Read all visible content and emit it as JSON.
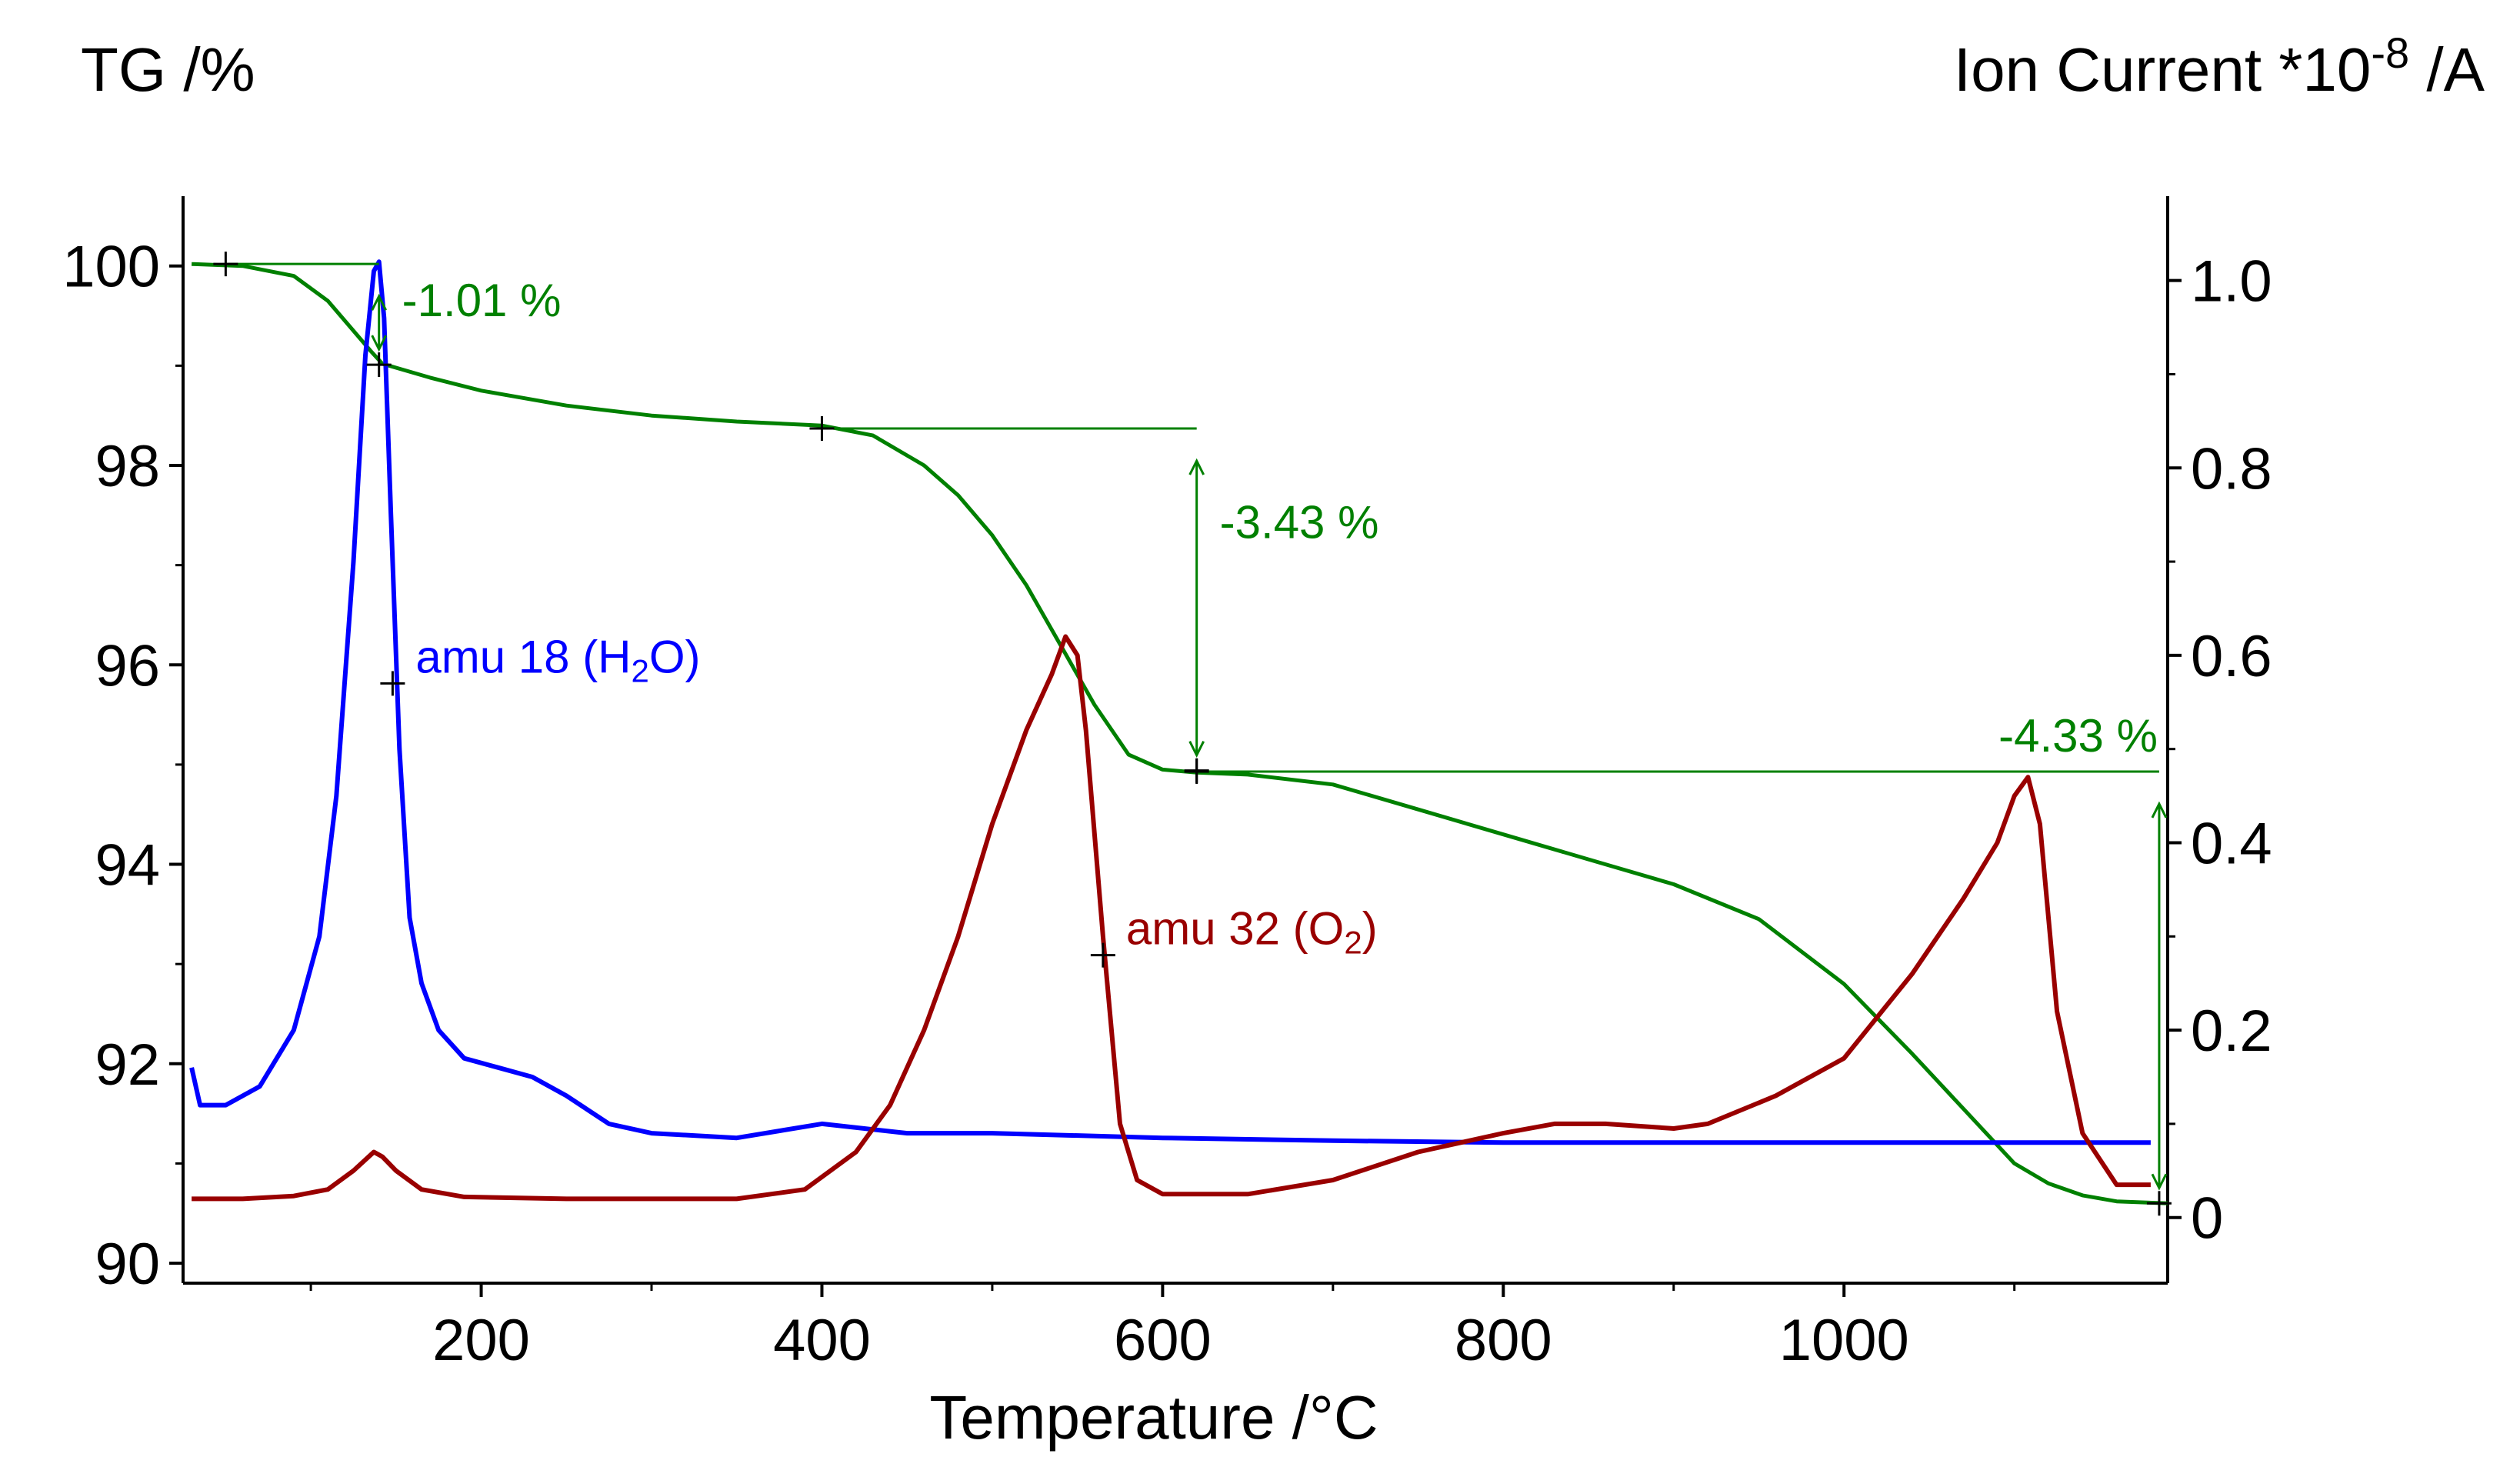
{
  "chart_data": {
    "type": "line",
    "ylabel_left": "TG /%",
    "ylabel_right_base": "Ion Current *10",
    "ylabel_right_exp": "-8",
    "ylabel_right_unit": " /A",
    "xlabel": "Temperature /°C",
    "xlim": [
      25,
      1190
    ],
    "ylim_left": [
      89.8,
      100.7
    ],
    "ylim_right": [
      -0.07,
      1.09
    ],
    "x_ticks": [
      200,
      400,
      600,
      800,
      1000
    ],
    "y_left_ticks": [
      90,
      92,
      94,
      96,
      98,
      100
    ],
    "y_right_ticks": [
      0,
      0.2,
      0.4,
      0.6,
      0.8,
      1.0
    ],
    "y_right_tick_labels": [
      "0",
      "0.2",
      "0.4",
      "0.6",
      "0.8",
      "1.0"
    ],
    "colors": {
      "tg": "#008000",
      "h2o": "#0000ff",
      "o2": "#990000",
      "axis": "#000000"
    },
    "series": [
      {
        "name": "TG",
        "axis": "left",
        "x": [
          30,
          60,
          90,
          110,
          125,
          135,
          142,
          150,
          170,
          200,
          250,
          300,
          350,
          400,
          430,
          460,
          480,
          500,
          520,
          540,
          560,
          580,
          600,
          620,
          650,
          700,
          750,
          800,
          850,
          900,
          950,
          1000,
          1040,
          1070,
          1100,
          1120,
          1140,
          1160,
          1190
        ],
        "y": [
          100.02,
          100.0,
          99.9,
          99.65,
          99.35,
          99.15,
          99.02,
          98.98,
          98.88,
          98.75,
          98.6,
          98.5,
          98.44,
          98.4,
          98.3,
          98.0,
          97.7,
          97.3,
          96.8,
          96.2,
          95.6,
          95.1,
          94.95,
          94.92,
          94.9,
          94.8,
          94.55,
          94.3,
          94.05,
          93.8,
          93.45,
          92.8,
          92.1,
          91.55,
          91.0,
          90.8,
          90.68,
          90.62,
          90.6
        ]
      },
      {
        "name": "amu 18 (H2O)",
        "axis": "right",
        "x": [
          30,
          35,
          50,
          70,
          90,
          105,
          115,
          125,
          132,
          137,
          140,
          143,
          147,
          152,
          158,
          165,
          175,
          190,
          210,
          230,
          250,
          275,
          300,
          350,
          400,
          450,
          500,
          600,
          700,
          800,
          900,
          1000,
          1100,
          1180
        ],
        "y": [
          0.16,
          0.12,
          0.12,
          0.14,
          0.2,
          0.3,
          0.45,
          0.7,
          0.92,
          1.01,
          1.02,
          0.96,
          0.75,
          0.5,
          0.32,
          0.25,
          0.2,
          0.17,
          0.16,
          0.15,
          0.13,
          0.1,
          0.09,
          0.085,
          0.1,
          0.09,
          0.09,
          0.085,
          0.082,
          0.08,
          0.08,
          0.08,
          0.08,
          0.08
        ]
      },
      {
        "name": "amu 32 (O2)",
        "axis": "right",
        "x": [
          30,
          60,
          90,
          110,
          125,
          137,
          142,
          150,
          165,
          190,
          250,
          300,
          350,
          390,
          420,
          440,
          460,
          480,
          500,
          520,
          535,
          543,
          550,
          555,
          565,
          575,
          585,
          600,
          650,
          700,
          750,
          800,
          830,
          860,
          900,
          920,
          960,
          1000,
          1040,
          1070,
          1090,
          1100,
          1108,
          1115,
          1125,
          1140,
          1160,
          1180
        ],
        "y": [
          0.02,
          0.02,
          0.023,
          0.03,
          0.05,
          0.07,
          0.065,
          0.05,
          0.03,
          0.022,
          0.02,
          0.02,
          0.02,
          0.03,
          0.07,
          0.12,
          0.2,
          0.3,
          0.42,
          0.52,
          0.58,
          0.62,
          0.6,
          0.52,
          0.3,
          0.1,
          0.04,
          0.025,
          0.025,
          0.04,
          0.07,
          0.09,
          0.1,
          0.1,
          0.095,
          0.1,
          0.13,
          0.17,
          0.26,
          0.34,
          0.4,
          0.45,
          0.47,
          0.42,
          0.22,
          0.09,
          0.035,
          0.035
        ]
      }
    ],
    "step_annotations": [
      {
        "label": "-1.01 %",
        "x_start": 50,
        "x_end": 140,
        "y_top": 100.02,
        "y_bottom": 99.01
      },
      {
        "label": "-3.43 %",
        "x_start": 400,
        "x_end": 620,
        "y_top": 98.37,
        "y_bottom": 94.94
      },
      {
        "label": "-4.33 %",
        "x_start": 620,
        "x_end": 1185,
        "y_top": 94.93,
        "y_bottom": 90.6
      }
    ],
    "series_labels": [
      {
        "series": "amu 18 (H2O)",
        "text_main": "amu 18 (H",
        "text_sub": "2",
        "text_end": "O)",
        "anchor_x": 148,
        "anchor_y": 0.57
      },
      {
        "series": "amu 32 (O2)",
        "text_main": "amu 32 (O",
        "text_sub": "2",
        "text_end": ")",
        "anchor_x": 565,
        "anchor_y": 0.28
      }
    ],
    "grid": false
  }
}
